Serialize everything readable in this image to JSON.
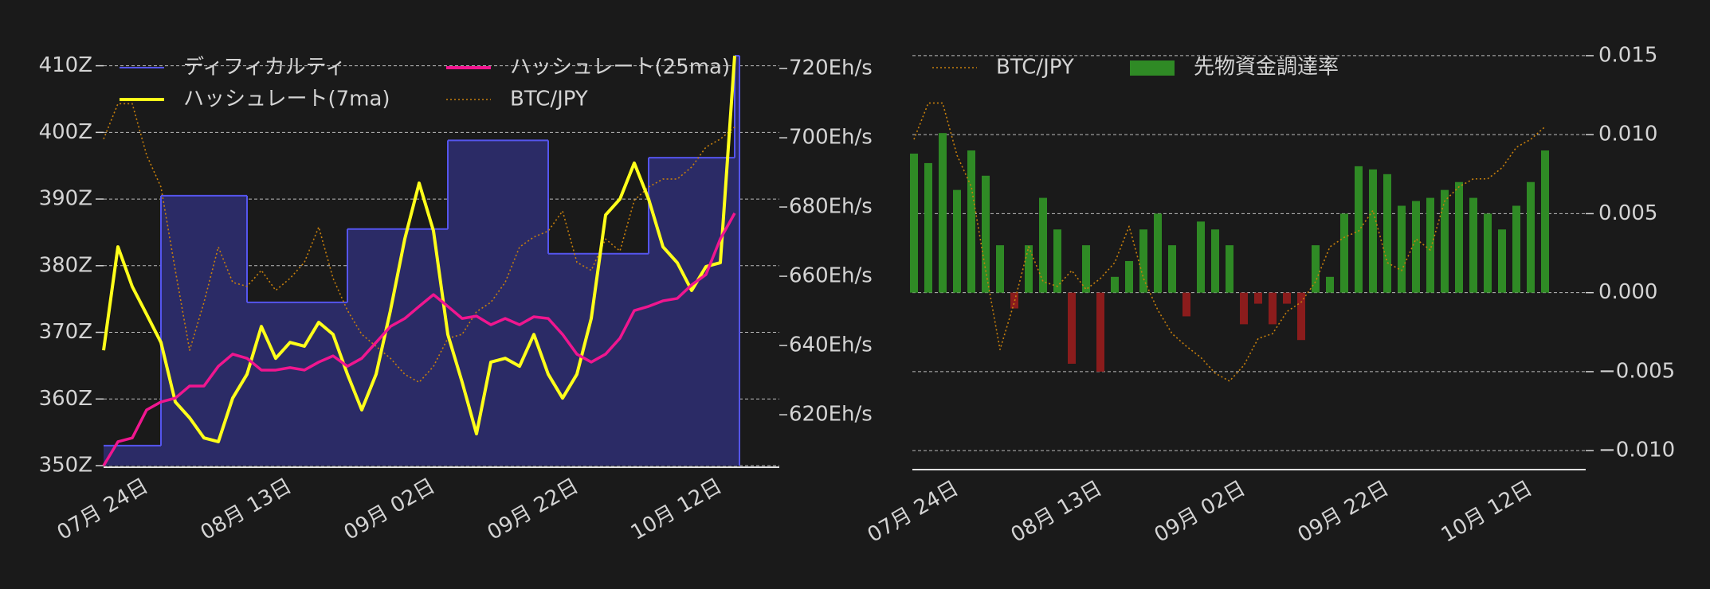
{
  "chart_data": [
    {
      "type": "line",
      "categories": [
        null,
        null,
        null,
        "07月 24日",
        null,
        null,
        null,
        null,
        null,
        null,
        null,
        null,
        null,
        "08月 13日",
        null,
        null,
        null,
        null,
        null,
        null,
        null,
        null,
        null,
        "09月 02日",
        null,
        null,
        null,
        null,
        null,
        null,
        null,
        null,
        null,
        "09月 22日",
        null,
        null,
        null,
        null,
        null,
        null,
        null,
        null,
        null,
        "10月 12日",
        null
      ],
      "ylim": [
        350,
        412.7
      ],
      "yticks": [
        {
          "value": 350,
          "label": "350Z"
        },
        {
          "value": 360,
          "label": "360Z"
        },
        {
          "value": 370,
          "label": "370Z"
        },
        {
          "value": 380,
          "label": "380Z"
        },
        {
          "value": 390,
          "label": "390Z"
        },
        {
          "value": 400,
          "label": "400Z"
        },
        {
          "value": 410,
          "label": "410Z"
        }
      ],
      "y2lim": [
        605.3,
        726
      ],
      "y2ticks": [
        {
          "value": 620,
          "label": "620Eh/s"
        },
        {
          "value": 640,
          "label": "640Eh/s"
        },
        {
          "value": 660,
          "label": "660Eh/s"
        },
        {
          "value": 680,
          "label": "680Eh/s"
        },
        {
          "value": 700,
          "label": "700Eh/s"
        },
        {
          "value": 720,
          "label": "720Eh/s"
        }
      ],
      "grid": true,
      "legend": "upper left",
      "legend_ncol": 2,
      "series": [
        {
          "name": "ディフィカルティ",
          "type": "step-area",
          "color": "#5555ee",
          "fill": "#2b2b66",
          "values": [
            353,
            353,
            353,
            353,
            390.5,
            390.5,
            390.5,
            390.5,
            390.5,
            390.5,
            374.5,
            374.5,
            374.5,
            374.5,
            374.5,
            374.5,
            374.5,
            385.5,
            385.5,
            385.5,
            385.5,
            385.5,
            385.5,
            385.5,
            398.8,
            398.8,
            398.8,
            398.8,
            398.8,
            398.8,
            398.8,
            381.8,
            381.8,
            381.8,
            381.8,
            381.8,
            381.8,
            381.8,
            396.2,
            396.2,
            396.2,
            396.2,
            396.2,
            396.2,
            411.5
          ]
        },
        {
          "name": "ハッシュレート(7ma)",
          "type": "line",
          "axis": "y2",
          "color": "#ffff1a",
          "values": [
            638.6,
            668.5,
            657.0,
            649.0,
            640.9,
            623.7,
            619.1,
            613.3,
            612.2,
            624.8,
            631.7,
            645.5,
            636.3,
            640.9,
            639.8,
            646.7,
            643.2,
            631.7,
            621.4,
            631.7,
            650.1,
            670.8,
            686.9,
            673.1,
            643.2,
            629.4,
            614.5,
            635.2,
            636.3,
            634.0,
            643.2,
            631.7,
            624.8,
            631.7,
            647.8,
            677.7,
            682.3,
            692.7,
            682.3,
            668.5,
            663.9,
            655.9,
            662.8,
            663.9,
            723.7
          ]
        },
        {
          "name": "ハッシュレート(25ma)",
          "type": "line",
          "axis": "y2",
          "color": "#f0168f",
          "values": [
            605.3,
            612.2,
            613.3,
            621.4,
            623.7,
            624.8,
            628.3,
            628.3,
            634.0,
            637.5,
            636.3,
            632.9,
            632.9,
            633.6,
            632.9,
            635.2,
            637.0,
            634.0,
            636.3,
            640.9,
            645.5,
            647.8,
            651.3,
            654.7,
            651.3,
            647.8,
            648.5,
            646.0,
            647.8,
            646.0,
            648.3,
            647.8,
            643.2,
            637.5,
            635.2,
            637.5,
            642.1,
            650.1,
            651.3,
            652.9,
            653.6,
            657.5,
            660.5,
            670.8,
            678.2
          ]
        },
        {
          "name": "BTC/JPY",
          "type": "dotted-line",
          "color": "#c8800c",
          "values": [
            399.0,
            404.3,
            404.3,
            396.6,
            391.8,
            379.3,
            367.3,
            374.5,
            382.8,
            377.5,
            376.9,
            379.3,
            376.3,
            378.1,
            380.5,
            385.8,
            378.1,
            373.3,
            369.7,
            367.9,
            366.1,
            363.7,
            362.5,
            364.9,
            369.1,
            369.7,
            373.1,
            374.5,
            377.5,
            382.8,
            384.3,
            385.2,
            388.2,
            380.5,
            379.3,
            384.0,
            382.2,
            389.8,
            391.8,
            393.0,
            393.0,
            394.8,
            397.8,
            399.0,
            400.8
          ]
        }
      ]
    },
    {
      "type": "bar",
      "categories": [
        null,
        null,
        null,
        "07月 24日",
        null,
        null,
        null,
        null,
        null,
        null,
        null,
        null,
        null,
        "08月 13日",
        null,
        null,
        null,
        null,
        null,
        null,
        null,
        null,
        null,
        "09月 02日",
        null,
        null,
        null,
        null,
        null,
        null,
        null,
        null,
        null,
        "09月 22日",
        null,
        null,
        null,
        null,
        null,
        null,
        null,
        null,
        null,
        "10月 12日",
        null
      ],
      "yaxis_side": "right",
      "ylim": [
        -0.0111,
        0.0155
      ],
      "yticks": [
        {
          "value": -0.01,
          "label": "−0.010"
        },
        {
          "value": -0.005,
          "label": "−0.005"
        },
        {
          "value": 0,
          "label": "0.000"
        },
        {
          "value": 0.005,
          "label": "0.005"
        },
        {
          "value": 0.01,
          "label": "0.010"
        },
        {
          "value": 0.015,
          "label": "0.015"
        }
      ],
      "grid": true,
      "legend": "upper left",
      "legend_ncol": 2,
      "series": [
        {
          "name": "BTC/JPY",
          "type": "dotted-line",
          "color": "#c8800c",
          "values": [
            0.0097,
            0.012,
            0.012,
            0.0087,
            0.0067,
            0.0014,
            -0.0036,
            -0.0006,
            0.0029,
            0.0007,
            0.0004,
            0.0014,
            0.0002,
            0.0009,
            0.0019,
            0.0042,
            0.0009,
            -0.0011,
            -0.0026,
            -0.0034,
            -0.0041,
            -0.0051,
            -0.0056,
            -0.0046,
            -0.0029,
            -0.0026,
            -0.0012,
            -0.0006,
            0.0007,
            0.0029,
            0.0035,
            0.0039,
            0.0052,
            0.0019,
            0.0014,
            0.0034,
            0.0027,
            0.0058,
            0.0067,
            0.0072,
            0.0072,
            0.0079,
            0.0092,
            0.0097,
            0.0105
          ]
        },
        {
          "name": "先物資金調達率",
          "type": "bar",
          "color": "#2f8a25",
          "negative_color": "#8b1c1c",
          "values": [
            0.0088,
            0.0082,
            0.0101,
            0.0065,
            0.009,
            0.0074,
            0.003,
            -0.001,
            0.003,
            0.006,
            0.004,
            -0.0045,
            0.003,
            -0.005,
            0.001,
            0.002,
            0.004,
            0.005,
            0.003,
            -0.0015,
            0.0045,
            0.004,
            0.003,
            -0.002,
            -0.0007,
            -0.002,
            -0.0007,
            -0.003,
            0.003,
            0.001,
            0.005,
            0.008,
            0.0078,
            0.0075,
            0.0055,
            0.0058,
            0.006,
            0.0065,
            0.007,
            0.006,
            0.005,
            0.004,
            0.0055,
            0.007,
            0.009
          ]
        }
      ]
    }
  ]
}
